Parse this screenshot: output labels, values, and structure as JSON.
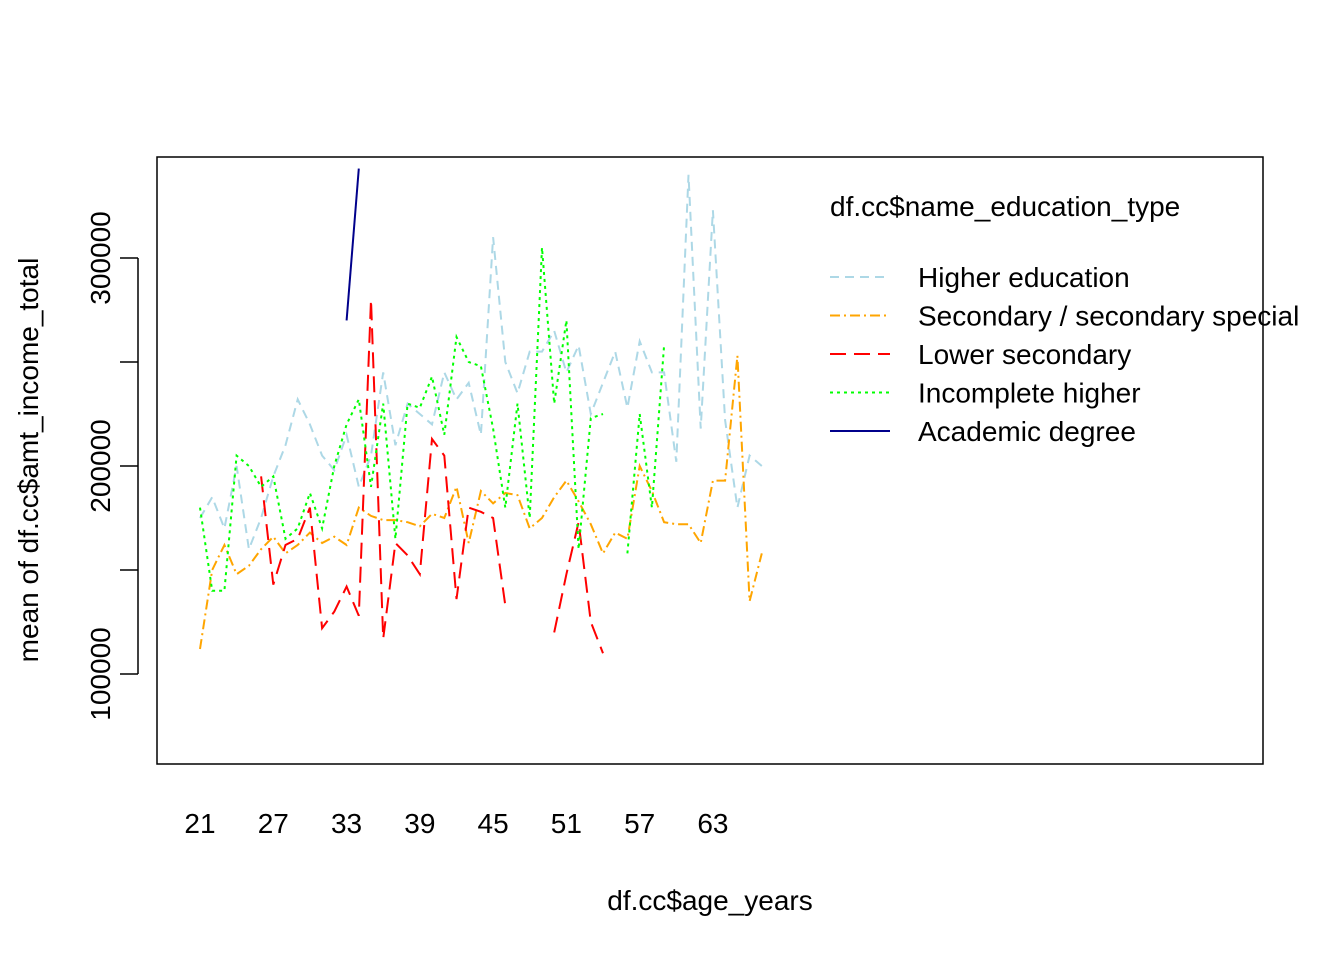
{
  "chart_data": {
    "type": "line",
    "title": "",
    "xlabel": "df.cc$age_years",
    "ylabel": "mean of  df.cc$amt_income_total",
    "xlim": [
      21,
      68
    ],
    "ylim": [
      55000,
      347000
    ],
    "x_tick_labels": [
      "21",
      "27",
      "33",
      "39",
      "45",
      "51",
      "57",
      "63"
    ],
    "y_tick_values": [
      100000,
      150000,
      200000,
      250000,
      300000
    ],
    "y_tick_labels": [
      "100000",
      "",
      "200000",
      "",
      "300000"
    ],
    "grid": false,
    "legend": {
      "title": "df.cc$name_education_type",
      "placement": "top-right"
    },
    "series": [
      {
        "name": "Higher education",
        "color": "#add8e6",
        "dash": "9,6",
        "x": [
          21,
          22,
          23,
          24,
          25,
          26,
          27,
          28,
          29,
          30,
          31,
          32,
          33,
          34,
          35,
          36,
          37,
          38,
          39,
          40,
          41,
          42,
          43,
          44,
          45,
          46,
          47,
          48,
          49,
          50,
          51,
          52,
          53,
          54,
          55,
          56,
          57,
          58,
          59,
          60,
          61,
          62,
          63,
          64,
          65,
          66,
          67
        ],
        "y": [
          175000,
          185000,
          170000,
          200000,
          160000,
          175000,
          195000,
          210000,
          232000,
          220000,
          205000,
          198000,
          215000,
          190000,
          205000,
          245000,
          210000,
          230000,
          225000,
          220000,
          245000,
          232000,
          240000,
          215000,
          310000,
          250000,
          235000,
          255000,
          255000,
          265000,
          245000,
          258000,
          225000,
          240000,
          255000,
          228000,
          260000,
          245000,
          245000,
          202000,
          340000,
          218000,
          323000,
          222000,
          180000,
          205000,
          200000
        ]
      },
      {
        "name": "Secondary / secondary special",
        "color": "#ffa500",
        "dash": "10,4,2,4",
        "x": [
          21,
          22,
          23,
          24,
          25,
          26,
          27,
          28,
          29,
          30,
          31,
          32,
          33,
          34,
          35,
          36,
          37,
          38,
          39,
          40,
          41,
          42,
          43,
          44,
          45,
          46,
          47,
          48,
          49,
          50,
          51,
          52,
          53,
          54,
          55,
          56,
          57,
          58,
          59,
          60,
          61,
          62,
          63,
          64,
          65,
          66,
          67
        ],
        "y": [
          112000,
          150000,
          162000,
          148000,
          152000,
          160000,
          166000,
          158000,
          162000,
          168000,
          163000,
          166000,
          162000,
          180000,
          176000,
          174000,
          174000,
          173000,
          171000,
          177000,
          175000,
          190000,
          163000,
          188000,
          182000,
          187000,
          186000,
          170000,
          175000,
          185000,
          193000,
          183000,
          172000,
          158000,
          168000,
          165000,
          200000,
          188000,
          173000,
          172000,
          172000,
          163000,
          193000,
          193000,
          253000,
          135000,
          158000
        ]
      },
      {
        "name": "Lower secondary",
        "color": "#ff0000",
        "dash": "16,8",
        "x": [
          26,
          27,
          28,
          29,
          30,
          31,
          32,
          33,
          34,
          35,
          36,
          37,
          38,
          39,
          40,
          41,
          42,
          43,
          44,
          45,
          46
        ],
        "y": [
          195000,
          143000,
          162000,
          165000,
          180000,
          122000,
          130000,
          142000,
          128000,
          280000,
          117000,
          163000,
          157000,
          148000,
          213000,
          205000,
          136000,
          180000,
          178000,
          175000,
          133000
        ],
        "segments": [
          {
            "x": [
              50,
              51,
              52,
              53,
              54
            ],
            "y": [
              120000,
              148000,
              173000,
              125000,
              110000
            ]
          }
        ]
      },
      {
        "name": "Incomplete higher",
        "color": "#00ff00",
        "dash": "3,4",
        "x": [
          21,
          22,
          23,
          24,
          25,
          26,
          27,
          28,
          29,
          30,
          31,
          32,
          33,
          34,
          35,
          36,
          37,
          38,
          39,
          40,
          41,
          42,
          43,
          44,
          45,
          46,
          47,
          48,
          49,
          50,
          51,
          52,
          53,
          54,
          55,
          56,
          57,
          58,
          59
        ],
        "y": [
          180000,
          140000,
          140000,
          205000,
          200000,
          190000,
          195000,
          165000,
          170000,
          187000,
          170000,
          200000,
          220000,
          232000,
          190000,
          230000,
          165000,
          230000,
          228000,
          243000,
          215000,
          262000,
          250000,
          248000,
          218000,
          180000,
          230000,
          175000,
          305000,
          230000,
          270000,
          160000,
          223000,
          225000,
          null,
          158000,
          225000,
          180000,
          258000
        ]
      },
      {
        "name": "Academic degree",
        "color": "#00008b",
        "dash": "",
        "x": [
          33,
          34
        ],
        "y": [
          270000,
          343000
        ]
      }
    ]
  }
}
